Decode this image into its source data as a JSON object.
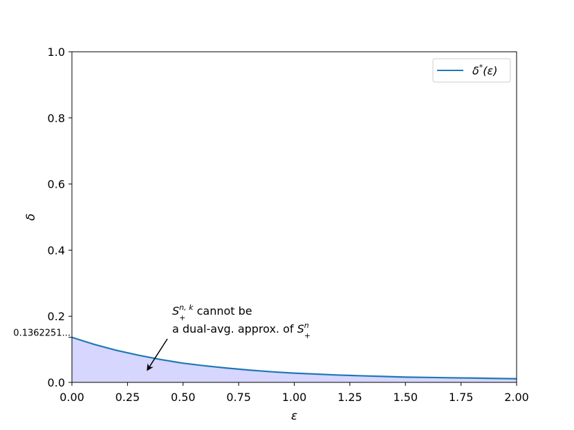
{
  "chart_data": {
    "type": "area",
    "title": "",
    "xlabel": "ε",
    "ylabel": "δ",
    "xlim": [
      0.0,
      2.0
    ],
    "ylim": [
      0.0,
      1.0
    ],
    "grid": false,
    "legend_position": "top-right",
    "xticks": [
      "0.00",
      "0.25",
      "0.50",
      "0.75",
      "1.00",
      "1.25",
      "1.50",
      "1.75",
      "2.00"
    ],
    "xtick_values": [
      0.0,
      0.25,
      0.5,
      0.75,
      1.0,
      1.25,
      1.5,
      1.75,
      2.0
    ],
    "yticks": [
      "0.0",
      "0.2",
      "0.4",
      "0.6",
      "0.8",
      "1.0"
    ],
    "ytick_values": [
      0.0,
      0.2,
      0.4,
      0.6,
      0.8,
      1.0
    ],
    "extra_ytick": {
      "label": "0.1362251...",
      "value": 0.1362251
    },
    "series": [
      {
        "name": "δ*(ε)",
        "color": "#1f77b4",
        "fill_color": "#d6d6ff",
        "x": [
          0.0,
          0.1,
          0.2,
          0.3,
          0.4,
          0.5,
          0.6,
          0.7,
          0.8,
          0.9,
          1.0,
          1.1,
          1.2,
          1.3,
          1.4,
          1.5,
          1.6,
          1.7,
          1.8,
          1.9,
          2.0
        ],
        "y": [
          0.1362,
          0.115,
          0.097,
          0.082,
          0.069,
          0.058,
          0.05,
          0.043,
          0.037,
          0.032,
          0.028,
          0.025,
          0.022,
          0.02,
          0.018,
          0.016,
          0.015,
          0.014,
          0.013,
          0.012,
          0.011
        ]
      }
    ],
    "annotation": {
      "line1_main": "S",
      "line1_sup": "n, k",
      "line1_sub": "+",
      "line1_tail": " cannot be",
      "line2_head": "a dual-avg. approx. of ",
      "line2_main": "S",
      "line2_sup": "n",
      "line2_sub": "+",
      "arrow_tip": {
        "x": 0.34,
        "y": 0.038
      }
    },
    "legend": {
      "entry_main": "δ",
      "entry_sup": "*",
      "entry_tail": "(ε)"
    }
  }
}
